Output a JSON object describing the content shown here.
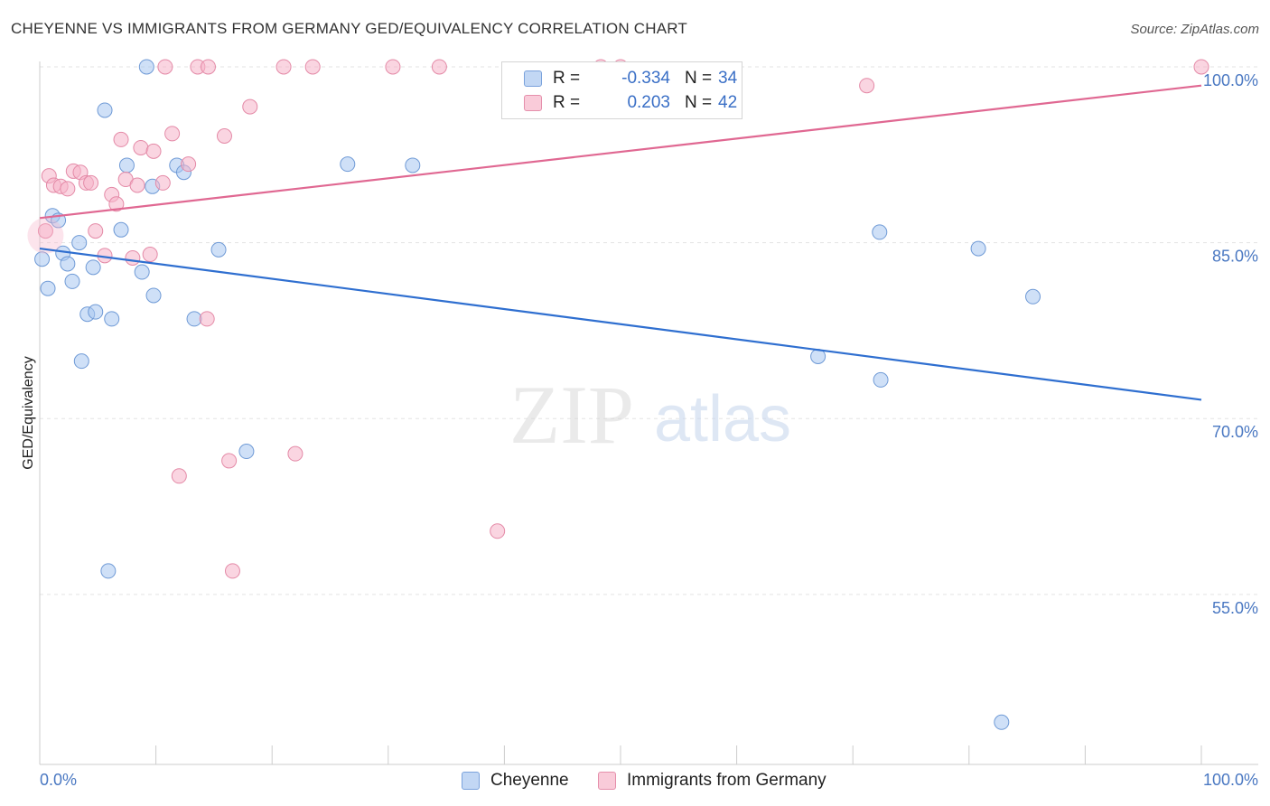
{
  "header": {
    "title": "CHEYENNE VS IMMIGRANTS FROM GERMANY GED/EQUIVALENCY CORRELATION CHART",
    "source": "Source: ZipAtlas.com"
  },
  "legend": {
    "rows": [
      {
        "r_label": "R =",
        "r_value": "-0.334",
        "n_label": "N =",
        "n_value": "34",
        "color": "#a8c6f0"
      },
      {
        "r_label": "R =",
        "r_value": "0.203",
        "n_label": "N =",
        "n_value": "42",
        "color": "#f5b3c8"
      }
    ]
  },
  "bottom_legend": {
    "items": [
      {
        "label": "Cheyenne",
        "color": "#a8c6f0"
      },
      {
        "label": "Immigrants from Germany",
        "color": "#f5b3c8"
      }
    ]
  },
  "watermark": {
    "zip": "ZIP",
    "atlas": "atlas"
  },
  "chart_data": {
    "type": "scatter",
    "title": "CHEYENNE VS IMMIGRANTS FROM GERMANY GED/EQUIVALENCY CORRELATION CHART",
    "xlabel": "",
    "ylabel": "GED/Equivalency",
    "xlim": [
      0,
      100
    ],
    "ylim": [
      40.5,
      102
    ],
    "x_tick_labels": [
      "0.0%",
      "100.0%"
    ],
    "y_ticks": [
      55,
      70,
      85,
      100
    ],
    "y_tick_labels": [
      "55.0%",
      "70.0%",
      "85.0%",
      "100.0%"
    ],
    "grid": true,
    "legend_position": "top-center",
    "series": [
      {
        "name": "Cheyenne",
        "color": "#a8c6f0",
        "stroke": "#6f9ad6",
        "trend_color": "#2f6fd0",
        "trend": {
          "x": [
            0,
            100
          ],
          "y": [
            84.5,
            71.6
          ]
        },
        "points": [
          [
            9.2,
            100.0
          ],
          [
            5.6,
            96.3
          ],
          [
            7.5,
            91.6
          ],
          [
            11.8,
            91.6
          ],
          [
            12.4,
            91.0
          ],
          [
            26.5,
            91.7
          ],
          [
            32.1,
            91.6
          ],
          [
            9.7,
            89.8
          ],
          [
            1.1,
            87.3
          ],
          [
            1.6,
            86.9
          ],
          [
            7.0,
            86.1
          ],
          [
            3.4,
            85.0
          ],
          [
            15.4,
            84.4
          ],
          [
            0.2,
            83.6
          ],
          [
            2.0,
            84.1
          ],
          [
            2.4,
            83.2
          ],
          [
            4.6,
            82.9
          ],
          [
            8.8,
            82.5
          ],
          [
            2.8,
            81.7
          ],
          [
            0.7,
            81.1
          ],
          [
            9.8,
            80.5
          ],
          [
            4.1,
            78.9
          ],
          [
            4.8,
            79.1
          ],
          [
            6.2,
            78.5
          ],
          [
            13.3,
            78.5
          ],
          [
            3.6,
            74.9
          ],
          [
            67.0,
            75.3
          ],
          [
            72.3,
            85.9
          ],
          [
            80.8,
            84.5
          ],
          [
            85.5,
            80.4
          ],
          [
            72.4,
            73.3
          ],
          [
            17.8,
            67.2
          ],
          [
            5.9,
            57.0
          ],
          [
            82.8,
            44.1
          ]
        ]
      },
      {
        "name": "Immigrants from Germany",
        "color": "#f5b3c8",
        "stroke": "#e48aa7",
        "trend_color": "#e06892",
        "trend": {
          "x": [
            0,
            100
          ],
          "y": [
            87.1,
            98.4
          ]
        },
        "points": [
          [
            10.8,
            100.0
          ],
          [
            13.6,
            100.0
          ],
          [
            14.5,
            100.0
          ],
          [
            21.0,
            100.0
          ],
          [
            23.5,
            100.0
          ],
          [
            30.4,
            100.0
          ],
          [
            34.4,
            100.0
          ],
          [
            50.0,
            100.0
          ],
          [
            100.0,
            100.0
          ],
          [
            71.2,
            98.4
          ],
          [
            18.1,
            96.6
          ],
          [
            7.0,
            93.8
          ],
          [
            11.4,
            94.3
          ],
          [
            15.9,
            94.1
          ],
          [
            8.7,
            93.1
          ],
          [
            9.8,
            92.8
          ],
          [
            12.8,
            91.7
          ],
          [
            0.8,
            90.7
          ],
          [
            2.9,
            91.1
          ],
          [
            3.5,
            91.0
          ],
          [
            7.4,
            90.4
          ],
          [
            1.2,
            89.9
          ],
          [
            1.8,
            89.8
          ],
          [
            2.4,
            89.6
          ],
          [
            4.0,
            90.1
          ],
          [
            4.4,
            90.1
          ],
          [
            8.4,
            89.9
          ],
          [
            10.6,
            90.1
          ],
          [
            6.2,
            89.1
          ],
          [
            6.6,
            88.3
          ],
          [
            0.5,
            86.0
          ],
          [
            4.8,
            86.0
          ],
          [
            5.6,
            83.9
          ],
          [
            8.0,
            83.7
          ],
          [
            9.5,
            84.0
          ],
          [
            14.4,
            78.5
          ],
          [
            22.0,
            67.0
          ],
          [
            16.3,
            66.4
          ],
          [
            12.0,
            65.1
          ],
          [
            39.4,
            60.4
          ],
          [
            16.6,
            57.0
          ],
          [
            48.3,
            100.0
          ]
        ]
      }
    ]
  }
}
